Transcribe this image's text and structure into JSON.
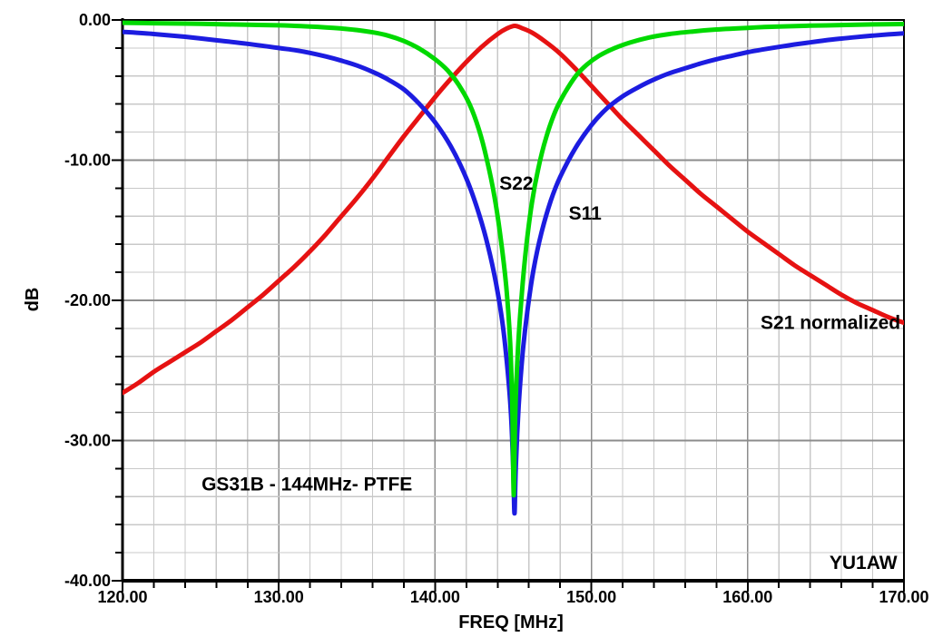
{
  "chart_data": {
    "type": "line",
    "title": "",
    "xlabel": "FREQ [MHz]",
    "ylabel": "dB",
    "x_axis": {
      "min": 120,
      "max": 170,
      "major_tick_values": [
        120,
        130,
        140,
        150,
        160,
        170
      ],
      "major_tick_labels": [
        "120.00",
        "130.00",
        "140.00",
        "150.00",
        "160.00",
        "170.00"
      ],
      "minor_step": 2
    },
    "y_axis": {
      "min": -40,
      "max": 0,
      "major_tick_values": [
        0,
        -10,
        -20,
        -30,
        -40
      ],
      "major_tick_labels": [
        "0.00",
        "-10.00",
        "-20.00",
        "-30.00",
        "-40.00"
      ],
      "minor_step": 2
    },
    "grid": {
      "show": true,
      "minor_color": "#c8c8c8",
      "major_color": "#8c8c8c"
    },
    "series": [
      {
        "name": "S21 normalized",
        "color": "#e61212",
        "points": [
          [
            120,
            -26.6
          ],
          [
            121,
            -25.9
          ],
          [
            122,
            -25.1
          ],
          [
            123,
            -24.4
          ],
          [
            124,
            -23.7
          ],
          [
            125,
            -23.0
          ],
          [
            126,
            -22.2
          ],
          [
            127,
            -21.4
          ],
          [
            128,
            -20.5
          ],
          [
            129,
            -19.6
          ],
          [
            130,
            -18.6
          ],
          [
            131,
            -17.6
          ],
          [
            132,
            -16.5
          ],
          [
            133,
            -15.3
          ],
          [
            134,
            -14.0
          ],
          [
            135,
            -12.7
          ],
          [
            136,
            -11.3
          ],
          [
            137,
            -9.8
          ],
          [
            138,
            -8.3
          ],
          [
            139,
            -6.9
          ],
          [
            140,
            -5.5
          ],
          [
            141,
            -4.2
          ],
          [
            142,
            -3.0
          ],
          [
            143,
            -1.9
          ],
          [
            144,
            -1.0
          ],
          [
            144.6,
            -0.6
          ],
          [
            145.1,
            -0.42
          ],
          [
            145.6,
            -0.6
          ],
          [
            146.2,
            -0.9
          ],
          [
            147,
            -1.5
          ],
          [
            148,
            -2.4
          ],
          [
            149,
            -3.5
          ],
          [
            150,
            -4.7
          ],
          [
            151,
            -5.9
          ],
          [
            152,
            -7.1
          ],
          [
            153,
            -8.2
          ],
          [
            154,
            -9.3
          ],
          [
            155,
            -10.4
          ],
          [
            156,
            -11.4
          ],
          [
            157,
            -12.4
          ],
          [
            158,
            -13.3
          ],
          [
            159,
            -14.2
          ],
          [
            160,
            -15.1
          ],
          [
            161,
            -15.9
          ],
          [
            162,
            -16.7
          ],
          [
            163,
            -17.5
          ],
          [
            164,
            -18.2
          ],
          [
            165,
            -18.9
          ],
          [
            166,
            -19.6
          ],
          [
            167,
            -20.2
          ],
          [
            168,
            -20.7
          ],
          [
            169,
            -21.2
          ],
          [
            170,
            -21.6
          ]
        ]
      },
      {
        "name": "S11",
        "color": "#1c1ce0",
        "points": [
          [
            120,
            -0.85
          ],
          [
            122,
            -1.0
          ],
          [
            124,
            -1.2
          ],
          [
            126,
            -1.45
          ],
          [
            128,
            -1.7
          ],
          [
            130,
            -2.0
          ],
          [
            131,
            -2.15
          ],
          [
            132,
            -2.35
          ],
          [
            133,
            -2.6
          ],
          [
            134,
            -2.9
          ],
          [
            135,
            -3.25
          ],
          [
            136,
            -3.7
          ],
          [
            137,
            -4.25
          ],
          [
            138,
            -4.95
          ],
          [
            139,
            -6.0
          ],
          [
            140,
            -7.3
          ],
          [
            141,
            -9.0
          ],
          [
            142,
            -11.3
          ],
          [
            142.8,
            -13.8
          ],
          [
            143.4,
            -16.2
          ],
          [
            143.9,
            -18.8
          ],
          [
            144.3,
            -21.5
          ],
          [
            144.6,
            -24.5
          ],
          [
            144.85,
            -28.0
          ],
          [
            145.0,
            -32.0
          ],
          [
            145.08,
            -35.2
          ],
          [
            145.16,
            -32.0
          ],
          [
            145.35,
            -27.5
          ],
          [
            145.6,
            -23.8
          ],
          [
            145.9,
            -20.8
          ],
          [
            146.3,
            -17.8
          ],
          [
            146.8,
            -15.2
          ],
          [
            147.4,
            -12.9
          ],
          [
            148,
            -11.2
          ],
          [
            149,
            -9.1
          ],
          [
            150,
            -7.5
          ],
          [
            151,
            -6.3
          ],
          [
            152,
            -5.45
          ],
          [
            153,
            -4.8
          ],
          [
            154,
            -4.25
          ],
          [
            155,
            -3.8
          ],
          [
            156,
            -3.45
          ],
          [
            157,
            -3.1
          ],
          [
            158,
            -2.8
          ],
          [
            159,
            -2.55
          ],
          [
            160,
            -2.3
          ],
          [
            161,
            -2.1
          ],
          [
            162,
            -1.92
          ],
          [
            163,
            -1.75
          ],
          [
            164,
            -1.6
          ],
          [
            165,
            -1.45
          ],
          [
            166,
            -1.33
          ],
          [
            167,
            -1.22
          ],
          [
            168,
            -1.12
          ],
          [
            169,
            -1.03
          ],
          [
            170,
            -0.95
          ]
        ]
      },
      {
        "name": "S22",
        "color": "#00d900",
        "points": [
          [
            120,
            -0.2
          ],
          [
            122,
            -0.23
          ],
          [
            124,
            -0.26
          ],
          [
            126,
            -0.3
          ],
          [
            128,
            -0.34
          ],
          [
            130,
            -0.38
          ],
          [
            131,
            -0.42
          ],
          [
            132,
            -0.47
          ],
          [
            133,
            -0.53
          ],
          [
            134,
            -0.61
          ],
          [
            135,
            -0.72
          ],
          [
            136,
            -0.88
          ],
          [
            137,
            -1.12
          ],
          [
            138,
            -1.5
          ],
          [
            139,
            -2.05
          ],
          [
            140,
            -2.8
          ],
          [
            140.8,
            -3.6
          ],
          [
            141.5,
            -4.6
          ],
          [
            142.2,
            -6.0
          ],
          [
            142.8,
            -7.8
          ],
          [
            143.3,
            -9.9
          ],
          [
            143.8,
            -12.6
          ],
          [
            144.2,
            -15.6
          ],
          [
            144.55,
            -19.0
          ],
          [
            144.8,
            -23.0
          ],
          [
            144.95,
            -28.0
          ],
          [
            145.03,
            -33.9
          ],
          [
            145.12,
            -28.5
          ],
          [
            145.3,
            -23.5
          ],
          [
            145.55,
            -19.5
          ],
          [
            145.85,
            -16.0
          ],
          [
            146.2,
            -13.0
          ],
          [
            146.6,
            -10.6
          ],
          [
            147.1,
            -8.4
          ],
          [
            147.7,
            -6.5
          ],
          [
            148.3,
            -5.2
          ],
          [
            149,
            -4.0
          ],
          [
            149.7,
            -3.2
          ],
          [
            150.5,
            -2.55
          ],
          [
            151.5,
            -2.0
          ],
          [
            152.5,
            -1.6
          ],
          [
            153.7,
            -1.25
          ],
          [
            155,
            -1.0
          ],
          [
            156.5,
            -0.82
          ],
          [
            158,
            -0.68
          ],
          [
            160,
            -0.56
          ],
          [
            162,
            -0.47
          ],
          [
            164,
            -0.41
          ],
          [
            166,
            -0.36
          ],
          [
            168,
            -0.32
          ],
          [
            170,
            -0.29
          ]
        ]
      }
    ],
    "annotations": [
      {
        "text": "S22",
        "x_mhz": 145.2,
        "y_db": -11.65
      },
      {
        "text": "S11",
        "x_mhz": 149.6,
        "y_db": -13.8
      },
      {
        "text": "S21 normalized",
        "x_mhz": 165.3,
        "y_db": -21.6
      },
      {
        "text": "GS31B - 144MHz- PTFE",
        "x_mhz": 131.8,
        "y_db": -33.1
      },
      {
        "text": "YU1AW",
        "x_mhz": 167.4,
        "y_db": -38.7
      }
    ]
  }
}
